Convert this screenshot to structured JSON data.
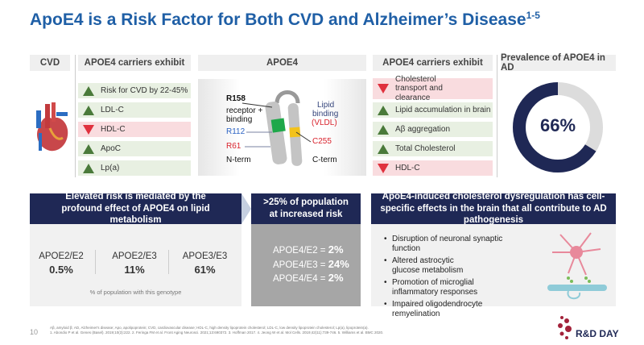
{
  "title": {
    "text": "ApoE4 is a Risk Factor for Both CVD and Alzheimer’s Disease",
    "sup": "1-5"
  },
  "headers": {
    "cvd": "CVD",
    "carriers_left": "APOE4 carriers exhibit",
    "apoe4": "APOE4",
    "carriers_right": "APOE4 carriers exhibit",
    "prevalence": "Prevalence of APOE4 in AD"
  },
  "cvd_effects": [
    {
      "label": "Risk for CVD by 22-45%",
      "direction": "up"
    },
    {
      "label": "LDL-C",
      "direction": "up"
    },
    {
      "label": "HDL-C",
      "direction": "down"
    },
    {
      "label": "ApoC",
      "direction": "up"
    },
    {
      "label": "Lp(a)",
      "direction": "up"
    }
  ],
  "ad_effects": [
    {
      "label": "Cholesterol transport and clearance",
      "direction": "down"
    },
    {
      "label": "Lipid accumulation in brain",
      "direction": "up"
    },
    {
      "label": "Aβ aggregation",
      "direction": "up"
    },
    {
      "label": "Total Cholesterol",
      "direction": "up"
    },
    {
      "label": "HDL-C",
      "direction": "down"
    }
  ],
  "protein": {
    "r158": "R158",
    "receptor": "receptor +",
    "binding": "binding",
    "r112": "R112",
    "r61": "R61",
    "nterm": "N-term",
    "lipid": "Lipid",
    "lipid_binding": "binding",
    "vldl": "(VLDL)",
    "c255": "C255",
    "cterm": "C-term"
  },
  "prevalence": {
    "value_label": "66%",
    "fraction": 0.66,
    "color": "#1f2855",
    "rest_color": "#dcdcdc"
  },
  "panel1": {
    "header": "Elevated risk is mediated by the profound effect of APOE4 on lipid metabolism",
    "genotypes": [
      {
        "name": "APOE2/E2",
        "value": "0.5%"
      },
      {
        "name": "APOE2/E3",
        "value": "11%"
      },
      {
        "name": "APOE3/E3",
        "value": "61%"
      }
    ],
    "note": "% of population with this genotype"
  },
  "panel2": {
    "header": ">25% of population at increased risk",
    "rows": [
      {
        "name": "APOE4/E2 = ",
        "value": "2%"
      },
      {
        "name": "APOE4/E3 = ",
        "value": "24%"
      },
      {
        "name": "APOE4/E4 = ",
        "value": "2%"
      }
    ]
  },
  "panel3": {
    "header": "ApoE4-induced cholesterol dysregulation has cell-specific effects in the brain that all contribute to AD pathogenesis",
    "bullets": [
      "Disruption of neuronal synaptic function",
      "Altered astrocytic glucose metabolism",
      "Promotion of microglial inflammatory responses",
      "Impaired oligodendrocyte remyelination"
    ]
  },
  "footer": {
    "page": "10",
    "abbrev": "Aβ, amyloid β; AD, Alzheimer's disease; Apo, apolipoprotein; CVD, cardiovascular disease; HDL-C, high density lipoprotein cholesterol; LDL-C, low density lipoprotein cholesterol; Lp(a), lipoprotein(a).",
    "refs": "1. Abondio P et al. Genes (Basel). 2019;10(3):222. 2. Feringa FM et al. Front Aging Neurosci. 2021;13:690372. 3. Hoffman 2017. 4. Jeong W et al. Mol Cells. 2019;42(11):739-746. 5. Williams et al. BMC 2020."
  },
  "logo": {
    "text": "R&D DAY"
  }
}
